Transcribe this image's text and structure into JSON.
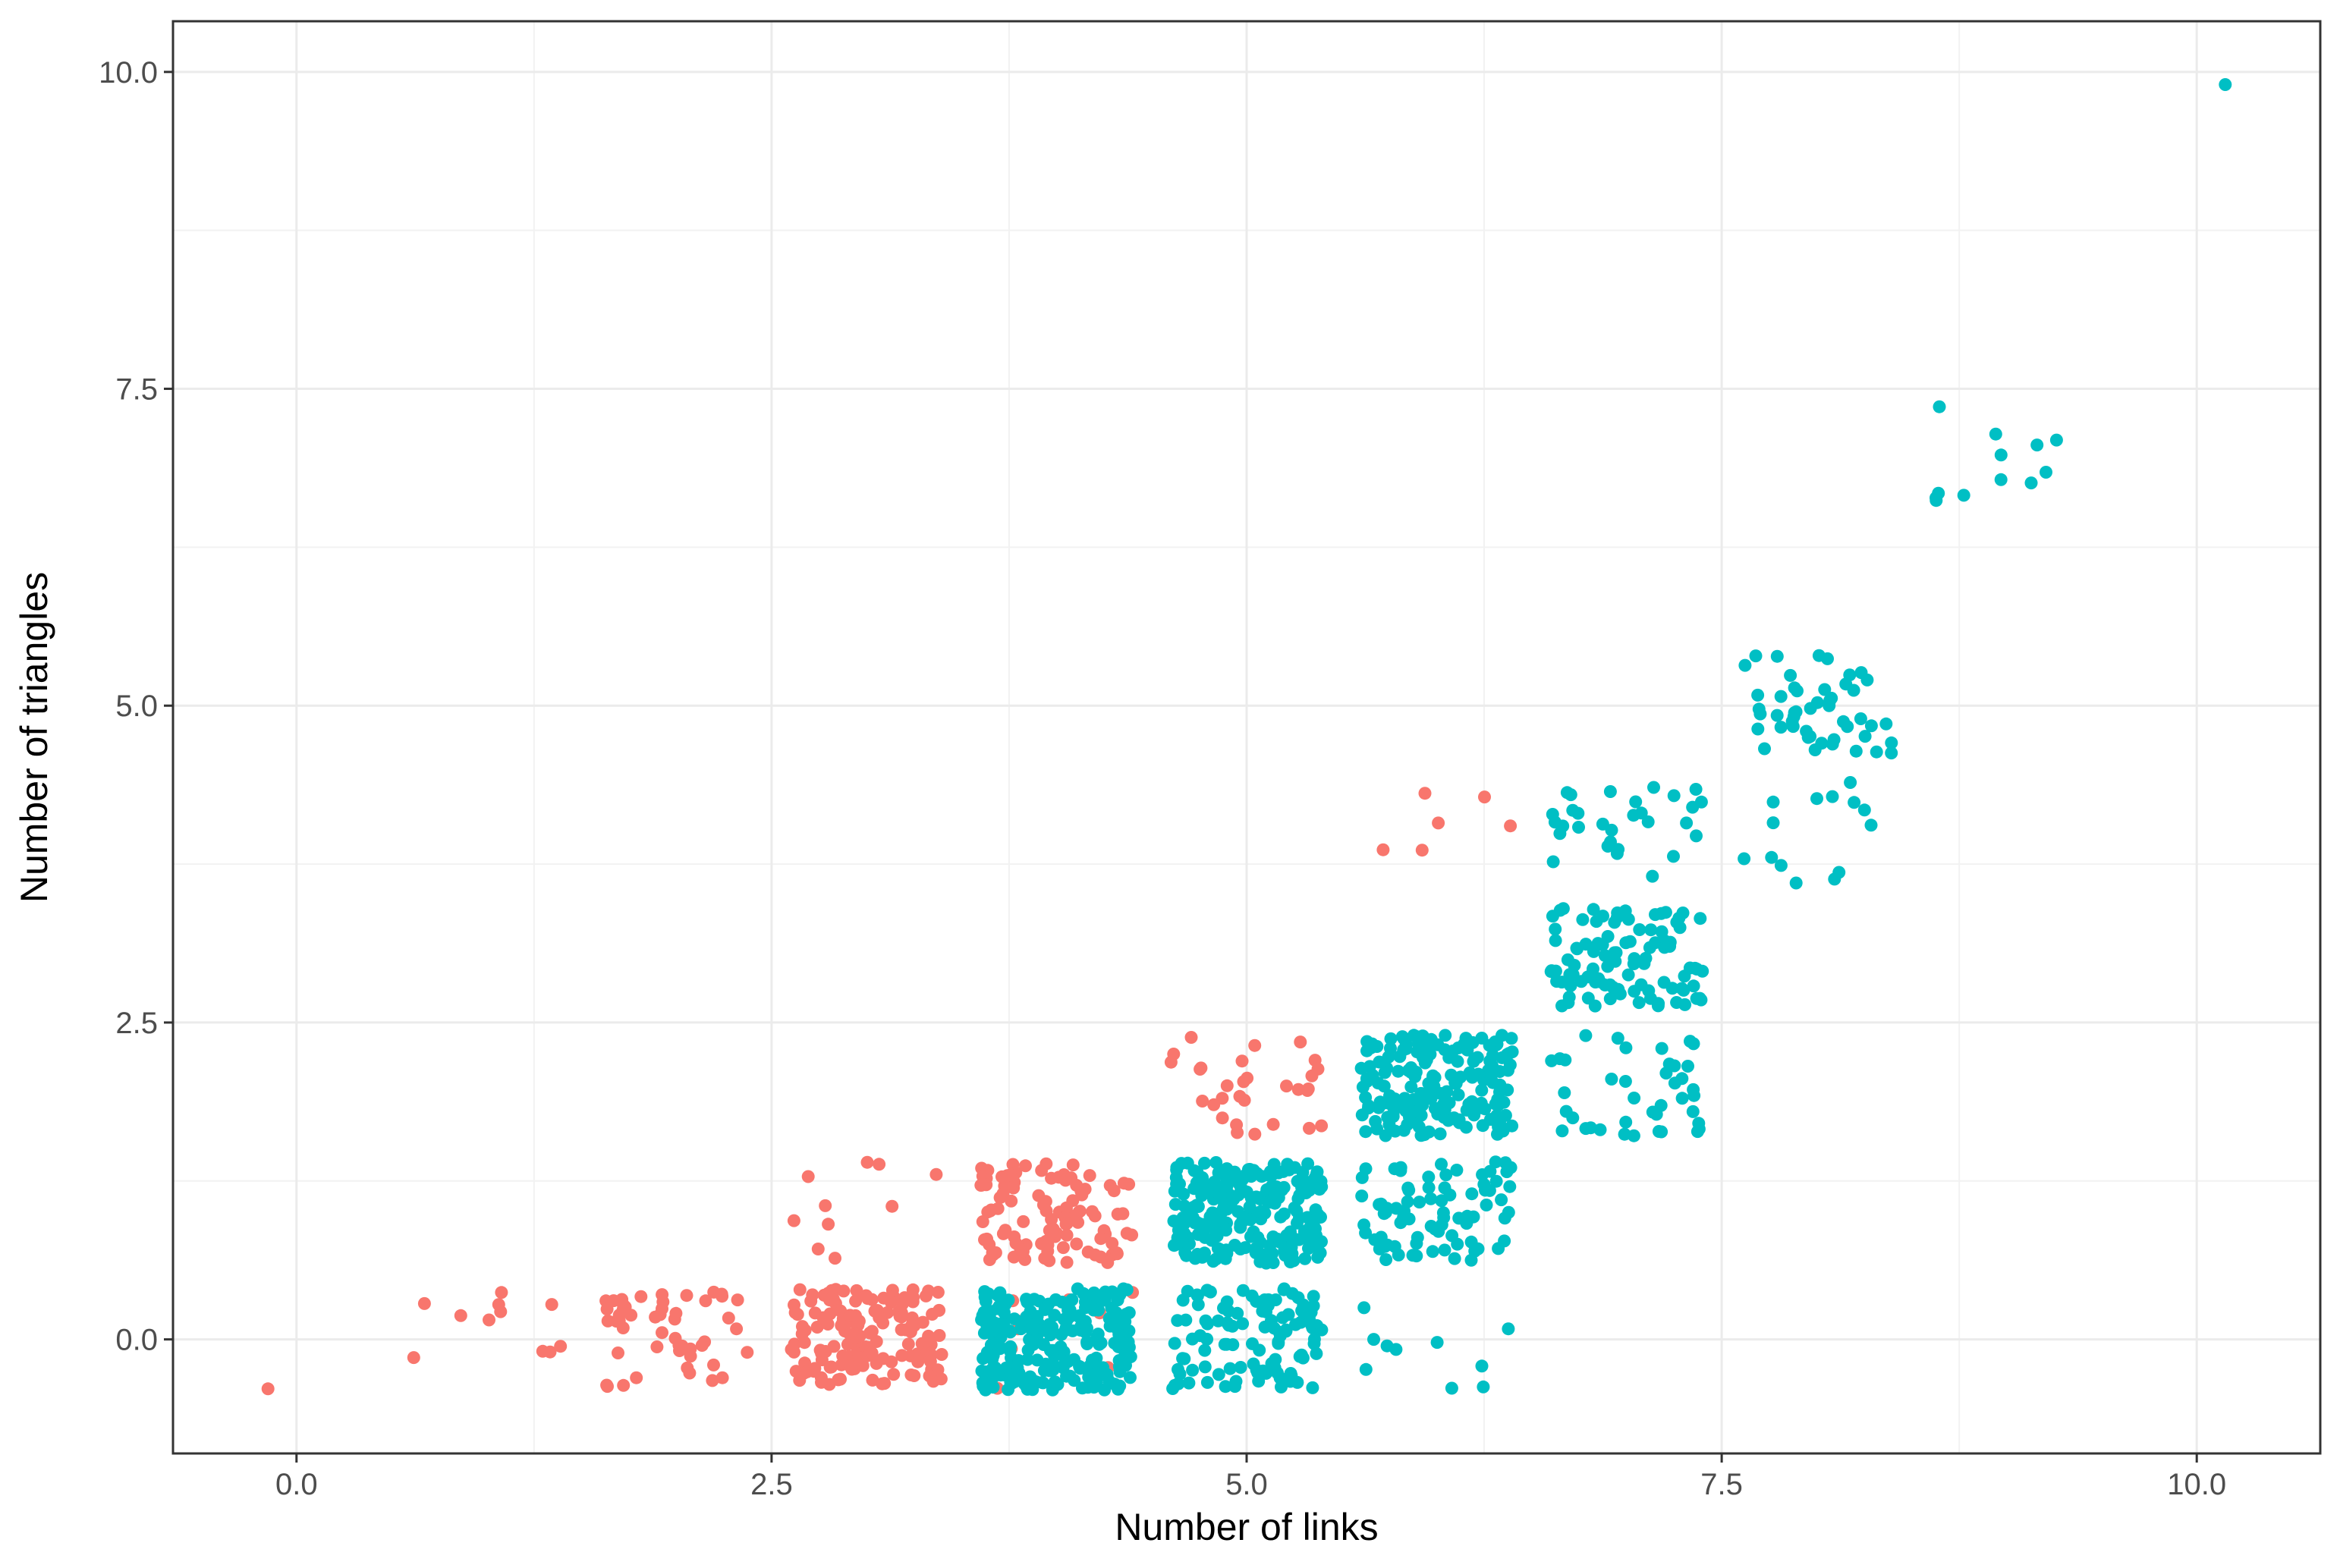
{
  "chart_data": {
    "type": "scatter",
    "title": "",
    "xlabel": "Number of links",
    "ylabel": "Number of triangles",
    "xlim": [
      -0.65,
      10.65
    ],
    "ylim": [
      -0.9,
      10.4
    ],
    "x_ticks": [
      0.0,
      2.5,
      5.0,
      7.5,
      10.0
    ],
    "y_ticks": [
      0.0,
      2.5,
      5.0,
      7.5,
      10.0
    ],
    "x_tick_labels": [
      "0.0",
      "2.5",
      "5.0",
      "7.5",
      "10.0"
    ],
    "y_tick_labels": [
      "0.0",
      "2.5",
      "5.0",
      "7.5",
      "10.0"
    ],
    "grid": true,
    "legend": "none",
    "jitter": 0.4,
    "colors": {
      "group_1": "#F8766D",
      "group_2": "#00BFC4"
    },
    "series": [
      {
        "color": "#F8766D",
        "clusters": [
          {
            "x": 0,
            "y": 0,
            "n": 1
          },
          {
            "x": 1,
            "y": 0,
            "n": 11
          },
          {
            "x": 2,
            "y": 0,
            "n": 50
          },
          {
            "x": 3,
            "y": 0,
            "n": 150
          },
          {
            "x": 3,
            "y": 1,
            "n": 10
          },
          {
            "x": 4,
            "y": 0,
            "n": 10
          },
          {
            "x": 4,
            "y": 1,
            "n": 110
          },
          {
            "x": 5,
            "y": 2,
            "n": 30
          },
          {
            "x": 6,
            "y": 4,
            "n": 6
          }
        ]
      },
      {
        "color": "#00BFC4",
        "clusters": [
          {
            "x": 4,
            "y": 0,
            "n": 240
          },
          {
            "x": 5,
            "y": 0,
            "n": 110
          },
          {
            "x": 5,
            "y": 1,
            "n": 230
          },
          {
            "x": 6,
            "y": 0,
            "n": 10
          },
          {
            "x": 6,
            "y": 1,
            "n": 80
          },
          {
            "x": 6,
            "y": 2,
            "n": 200
          },
          {
            "x": 7,
            "y": 2,
            "n": 40
          },
          {
            "x": 7,
            "y": 3,
            "n": 100
          },
          {
            "x": 7,
            "y": 4,
            "n": 30
          },
          {
            "x": 8,
            "y": 4,
            "n": 14
          },
          {
            "x": 8,
            "y": 5,
            "n": 50
          },
          {
            "x": 9,
            "y": 7,
            "n": 12
          },
          {
            "x": 10,
            "y": 10,
            "n": 1
          }
        ]
      }
    ]
  }
}
